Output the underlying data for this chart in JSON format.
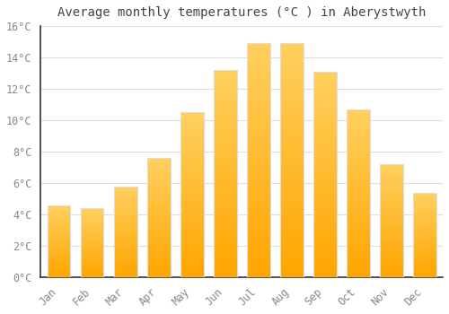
{
  "title": "Average monthly temperatures (°C ) in Aberystwyth",
  "months": [
    "Jan",
    "Feb",
    "Mar",
    "Apr",
    "May",
    "Jun",
    "Jul",
    "Aug",
    "Sep",
    "Oct",
    "Nov",
    "Dec"
  ],
  "values": [
    4.6,
    4.4,
    5.8,
    7.6,
    10.5,
    13.2,
    14.9,
    14.9,
    13.1,
    10.7,
    7.2,
    5.4
  ],
  "bar_color_light": "#FFD060",
  "bar_color_dark": "#FFA500",
  "bar_edge_color": "#DDDDDD",
  "background_color": "#FFFFFF",
  "plot_bg_color": "#FFFFFF",
  "grid_color": "#DDDDDD",
  "ylim": [
    0,
    16
  ],
  "yticks": [
    0,
    2,
    4,
    6,
    8,
    10,
    12,
    14,
    16
  ],
  "ytick_labels": [
    "0°C",
    "2°C",
    "4°C",
    "6°C",
    "8°C",
    "10°C",
    "12°C",
    "14°C",
    "16°C"
  ],
  "title_fontsize": 10,
  "tick_fontsize": 8.5,
  "title_color": "#444444",
  "tick_color": "#888888",
  "spine_color": "#333333"
}
